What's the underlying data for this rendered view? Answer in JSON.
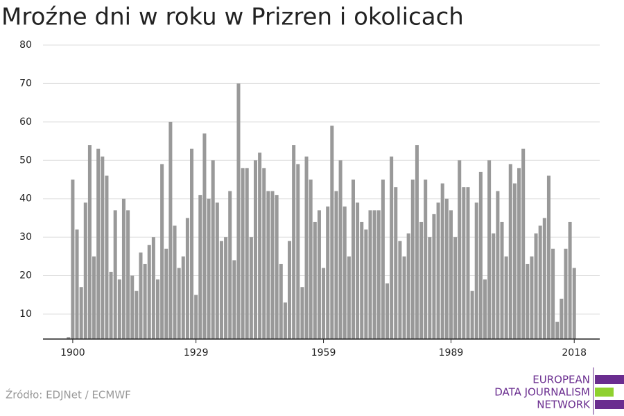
{
  "chart_data": {
    "type": "bar",
    "title": "Mroźne dni w roku w Prizren i okolicach",
    "source": "Źródło: EDJNet / ECMWF",
    "logo": [
      "EUROPEAN",
      "DATA JOURNALISM",
      "NETWORK"
    ],
    "color": "#999999",
    "grid": true,
    "x": [
      1899,
      1900,
      1901,
      1902,
      1903,
      1904,
      1905,
      1906,
      1907,
      1908,
      1909,
      1910,
      1911,
      1912,
      1913,
      1914,
      1915,
      1916,
      1917,
      1918,
      1919,
      1920,
      1921,
      1922,
      1923,
      1924,
      1925,
      1926,
      1927,
      1928,
      1929,
      1930,
      1931,
      1932,
      1933,
      1934,
      1935,
      1936,
      1937,
      1938,
      1939,
      1940,
      1941,
      1942,
      1943,
      1944,
      1945,
      1946,
      1947,
      1948,
      1949,
      1950,
      1951,
      1952,
      1953,
      1954,
      1955,
      1956,
      1957,
      1958,
      1959,
      1960,
      1961,
      1962,
      1963,
      1964,
      1965,
      1966,
      1967,
      1968,
      1969,
      1970,
      1971,
      1972,
      1973,
      1974,
      1975,
      1976,
      1977,
      1978,
      1979,
      1980,
      1981,
      1982,
      1983,
      1984,
      1985,
      1986,
      1987,
      1988,
      1989,
      1990,
      1991,
      1992,
      1993,
      1994,
      1995,
      1996,
      1997,
      1998,
      1999,
      2000,
      2001,
      2002,
      2003,
      2004,
      2005,
      2006,
      2007,
      2008,
      2009,
      2010,
      2011,
      2012,
      2013,
      2014,
      2015,
      2016,
      2017,
      2018
    ],
    "values": [
      4,
      45,
      32,
      17,
      39,
      54,
      25,
      53,
      51,
      46,
      21,
      37,
      19,
      40,
      37,
      20,
      16,
      26,
      23,
      28,
      30,
      19,
      49,
      27,
      60,
      33,
      22,
      25,
      35,
      53,
      15,
      41,
      57,
      40,
      50,
      39,
      29,
      30,
      42,
      24,
      70,
      48,
      48,
      30,
      50,
      52,
      48,
      42,
      42,
      41,
      23,
      13,
      29,
      54,
      49,
      17,
      51,
      45,
      34,
      37,
      22,
      38,
      59,
      42,
      50,
      38,
      25,
      45,
      39,
      34,
      32,
      37,
      37,
      37,
      45,
      18,
      51,
      43,
      29,
      25,
      31,
      45,
      54,
      34,
      45,
      30,
      36,
      39,
      44,
      40,
      37,
      30,
      50,
      43,
      43,
      16,
      39,
      47,
      19,
      50,
      31,
      42,
      34,
      25,
      49,
      44,
      48,
      53,
      23,
      25,
      31,
      33,
      35,
      46,
      27,
      8,
      14,
      27,
      34,
      22
    ],
    "xlim": [
      1893,
      2024
    ],
    "xticks": [
      1900,
      1929,
      1959,
      1989,
      2018
    ],
    "ylim": [
      3.5,
      80
    ],
    "yticks": [
      10,
      20,
      30,
      40,
      50,
      60,
      70,
      80
    ]
  }
}
